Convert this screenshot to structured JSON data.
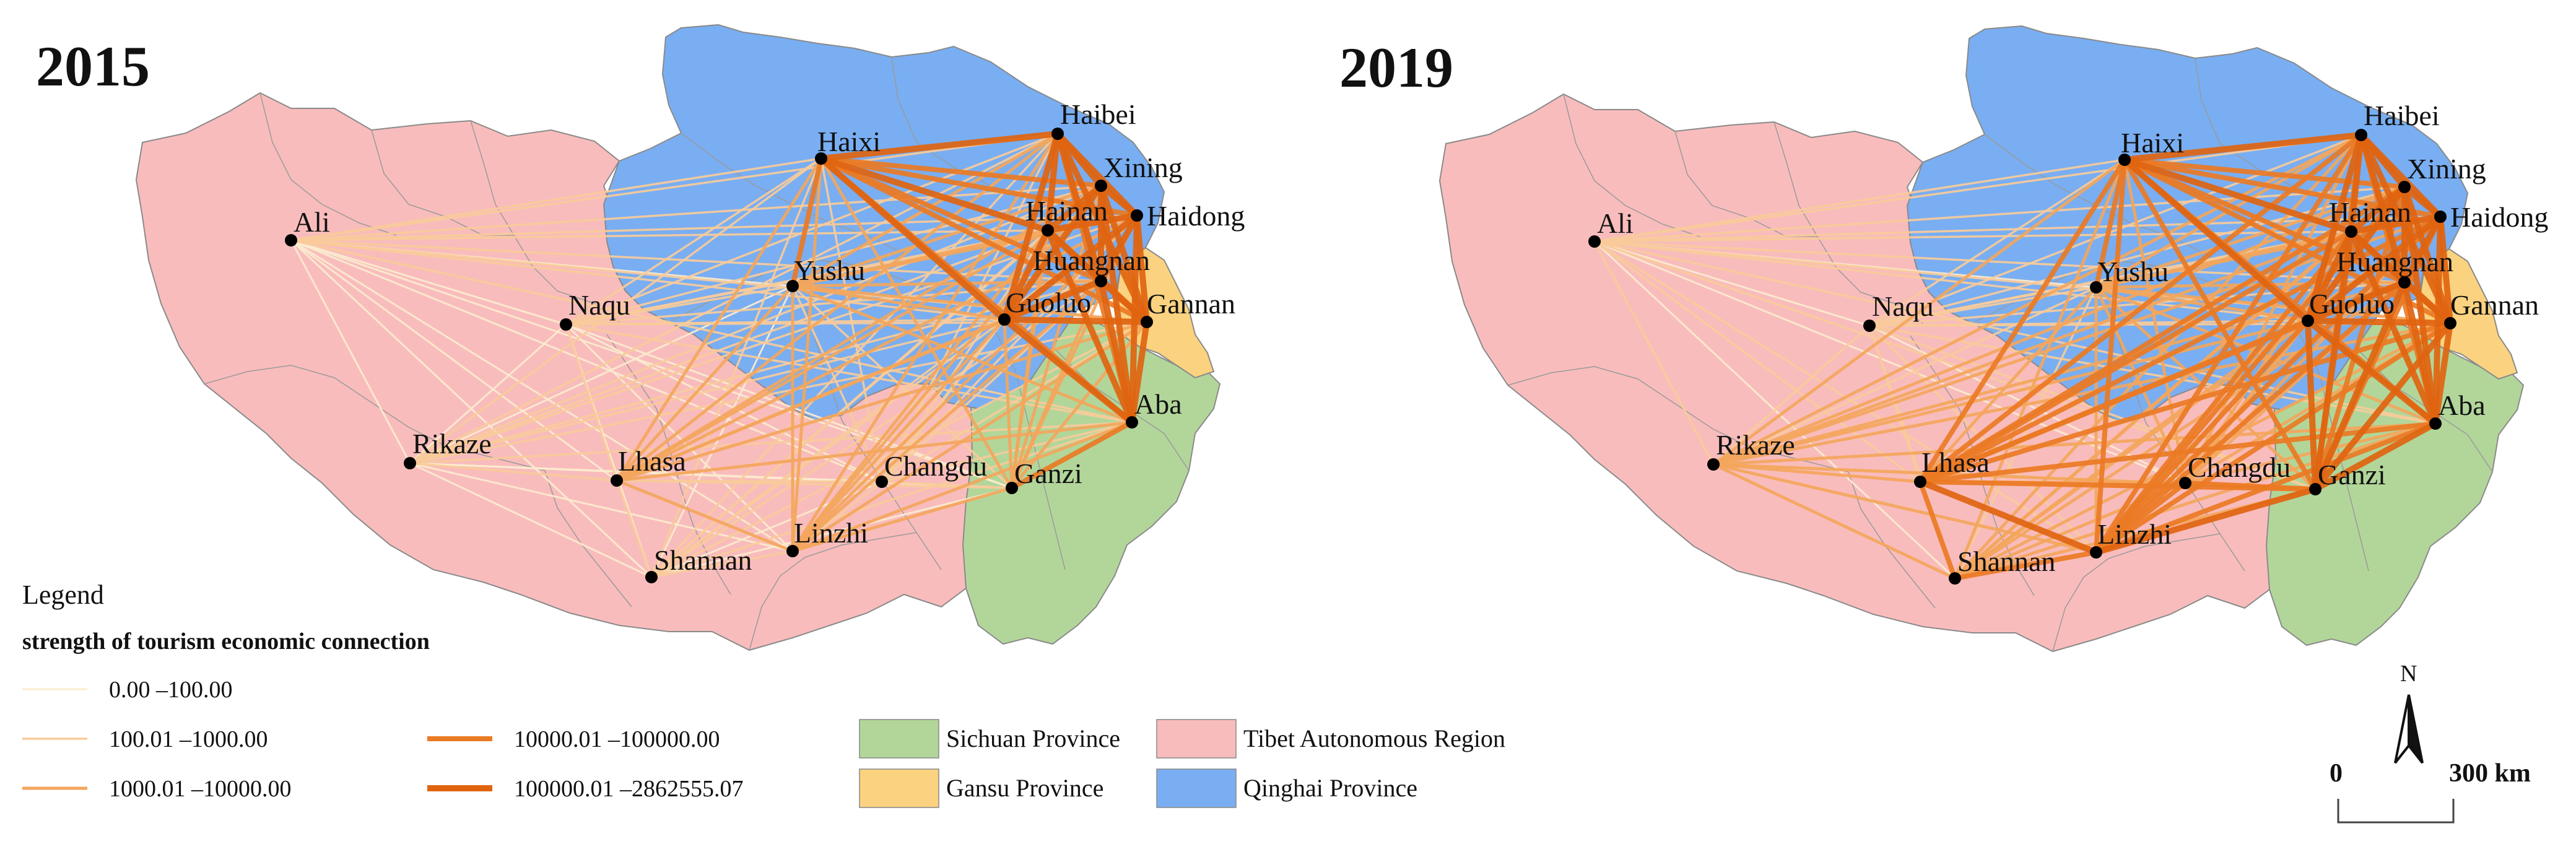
{
  "maps": [
    {
      "year": "2015",
      "cities": [
        {
          "name": "Haixi",
          "rank": "hub"
        },
        {
          "name": "Haibei",
          "rank": "hub"
        },
        {
          "name": "Xining",
          "rank": "hub"
        },
        {
          "name": "Hainan",
          "rank": "hub"
        },
        {
          "name": "Haidong",
          "rank": "hub"
        },
        {
          "name": "Huangnan",
          "rank": "hub"
        },
        {
          "name": "Yushu",
          "rank": "mid"
        },
        {
          "name": "Guoluo",
          "rank": "hub"
        },
        {
          "name": "Gannan",
          "rank": "hub"
        },
        {
          "name": "Aba",
          "rank": "hub"
        },
        {
          "name": "Ganzi",
          "rank": "mid"
        },
        {
          "name": "Changdu",
          "rank": "low"
        },
        {
          "name": "Linzhi",
          "rank": "mid"
        },
        {
          "name": "Lhasa",
          "rank": "mid"
        },
        {
          "name": "Shannan",
          "rank": "low"
        },
        {
          "name": "Rikaze",
          "rank": "low"
        },
        {
          "name": "Naqu",
          "rank": "low"
        },
        {
          "name": "Ali",
          "rank": "low"
        }
      ]
    },
    {
      "year": "2019",
      "cities": [
        {
          "name": "Haixi",
          "rank": "hub"
        },
        {
          "name": "Haibei",
          "rank": "hub"
        },
        {
          "name": "Xining",
          "rank": "hub"
        },
        {
          "name": "Hainan",
          "rank": "hub"
        },
        {
          "name": "Haidong",
          "rank": "hub"
        },
        {
          "name": "Huangnan",
          "rank": "hub"
        },
        {
          "name": "Yushu",
          "rank": "mid"
        },
        {
          "name": "Guoluo",
          "rank": "hub"
        },
        {
          "name": "Gannan",
          "rank": "hub"
        },
        {
          "name": "Aba",
          "rank": "hub"
        },
        {
          "name": "Ganzi",
          "rank": "hub"
        },
        {
          "name": "Changdu",
          "rank": "mid"
        },
        {
          "name": "Linzhi",
          "rank": "hub"
        },
        {
          "name": "Lhasa",
          "rank": "hub"
        },
        {
          "name": "Shannan",
          "rank": "mid"
        },
        {
          "name": "Rikaze",
          "rank": "mid"
        },
        {
          "name": "Naqu",
          "rank": "low"
        },
        {
          "name": "Ali",
          "rank": "low"
        }
      ]
    }
  ],
  "legend": {
    "title": "Legend",
    "subtitle": "strength of tourism economic connection",
    "classes": [
      {
        "label": "0.00 –100.00",
        "color": "#fbeccf"
      },
      {
        "label": "100.01 –1000.00",
        "color": "#f9cb9a"
      },
      {
        "label": "1000.01 –10000.00",
        "color": "#f3a65c"
      },
      {
        "label": "10000.01 –100000.00",
        "color": "#ea7a24"
      },
      {
        "label": "100000.01 –2862555.07",
        "color": "#e06410"
      }
    ],
    "provinces": [
      {
        "label": "Sichuan Province",
        "color": "#b2d69a"
      },
      {
        "label": "Gansu Province",
        "color": "#fbd27f"
      },
      {
        "label": "Tibet Autonomous Region",
        "color": "#f9bcbc"
      },
      {
        "label": "Qinghai Province",
        "color": "#79aef2"
      }
    ]
  },
  "north_arrow": {
    "label": "N"
  },
  "scale_bar": {
    "start": "0",
    "end": "300 km"
  }
}
